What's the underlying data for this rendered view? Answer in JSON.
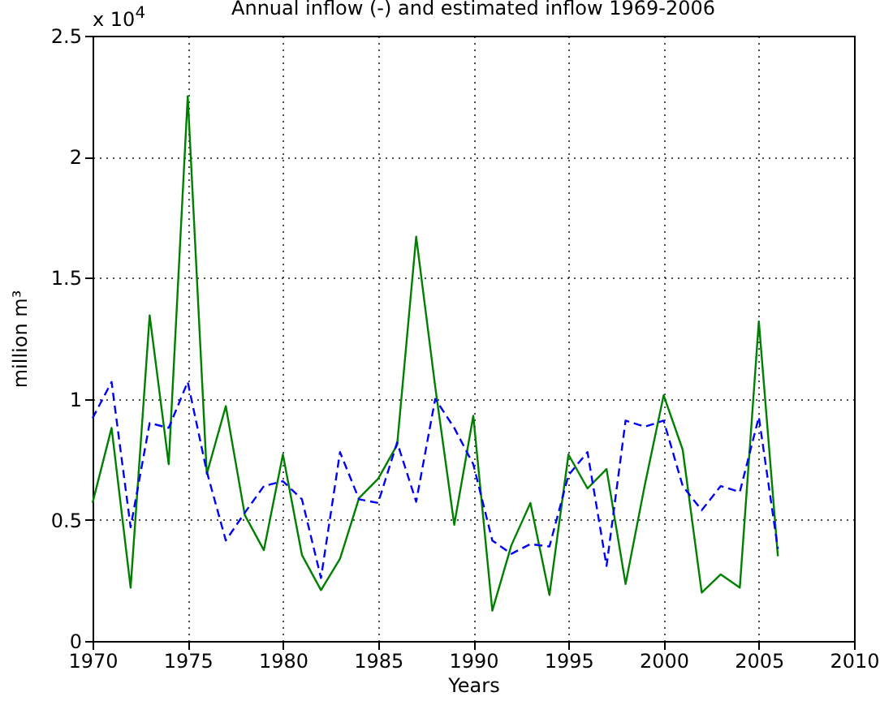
{
  "chart_data": {
    "type": "line",
    "title": "Annual inflow (-) and estimated inflow 1969-2006",
    "xlabel": "Years",
    "ylabel": "million m³",
    "annotations": [
      "x 10$^{4}$"
    ],
    "x": [
      1970,
      1971,
      1972,
      1973,
      1974,
      1975,
      1976,
      1977,
      1978,
      1979,
      1980,
      1981,
      1982,
      1983,
      1984,
      1985,
      1986,
      1987,
      1988,
      1989,
      1990,
      1991,
      1992,
      1993,
      1994,
      1995,
      1996,
      1997,
      1998,
      1999,
      2000,
      2001,
      2002,
      2003,
      2004,
      2005,
      2006
    ],
    "series": [
      {
        "color": "#008000",
        "line_style": "solid",
        "values": [
          0.57,
          0.88,
          0.22,
          1.345,
          0.73,
          2.25,
          0.69,
          0.97,
          0.52,
          0.375,
          0.77,
          0.355,
          0.21,
          0.34,
          0.59,
          0.67,
          0.81,
          1.67,
          1.05,
          0.48,
          0.93,
          0.125,
          0.395,
          0.57,
          0.19,
          0.77,
          0.63,
          0.71,
          0.235,
          0.64,
          1.015,
          0.79,
          0.2,
          0.275,
          0.22,
          1.32,
          0.35
        ]
      },
      {
        "color": "#0000ff",
        "line_style": "dashed",
        "values": [
          0.92,
          1.07,
          0.47,
          0.9,
          0.88,
          1.07,
          0.7,
          0.415,
          0.53,
          0.64,
          0.66,
          0.585,
          0.26,
          0.78,
          0.585,
          0.57,
          0.82,
          0.575,
          1.0,
          0.88,
          0.73,
          0.415,
          0.36,
          0.4,
          0.39,
          0.685,
          0.78,
          0.31,
          0.91,
          0.885,
          0.91,
          0.64,
          0.54,
          0.64,
          0.615,
          0.925,
          0.38
        ]
      }
    ],
    "xlim": [
      1970,
      2010
    ],
    "xticks": [
      1970,
      1975,
      1980,
      1985,
      1990,
      1995,
      2000,
      2005,
      2010
    ],
    "ylim": [
      0,
      2.5
    ],
    "yticks": [
      0,
      0.5,
      1,
      1.5,
      2,
      2.5
    ],
    "grid": true,
    "marker": "none"
  }
}
